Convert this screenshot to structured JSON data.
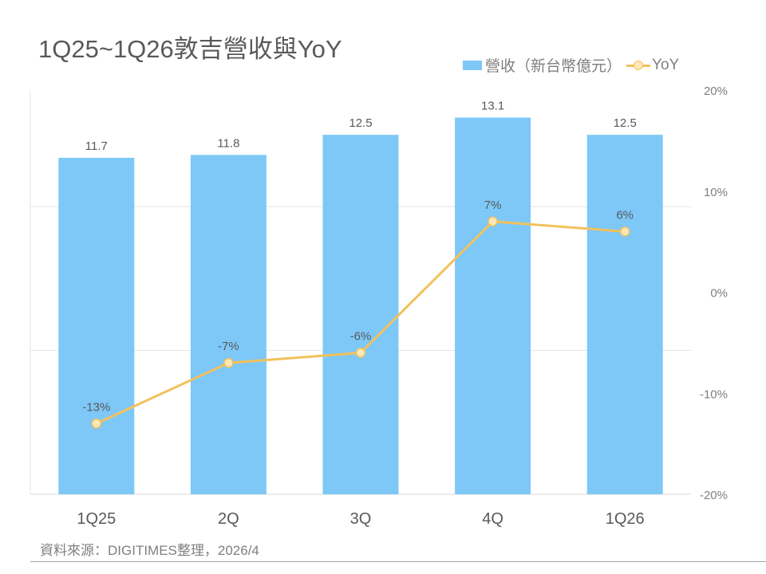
{
  "chart_data": {
    "type": "bar",
    "title": "1Q25~1Q26敦吉營收與YoY",
    "categories": [
      "1Q25",
      "2Q",
      "3Q",
      "4Q",
      "1Q26"
    ],
    "series": [
      {
        "name": "營收（新台幣億元）",
        "type": "bar",
        "axis": "left",
        "values": [
          11.7,
          11.8,
          12.5,
          13.1,
          12.5
        ],
        "labels": [
          "11.7",
          "11.8",
          "12.5",
          "13.1",
          "12.5"
        ],
        "color": "#7ec8f8"
      },
      {
        "name": "YoY",
        "type": "line",
        "axis": "right",
        "values": [
          -13,
          -7,
          -6,
          7,
          6
        ],
        "labels": [
          "-13%",
          "-7%",
          "-6%",
          "7%",
          "6%"
        ],
        "color": "#f2c15c"
      }
    ],
    "left_axis": {
      "ylim": [
        0,
        14
      ],
      "gridlines": [
        5,
        10
      ],
      "tick_labels_visible": false
    },
    "right_axis": {
      "ylim": [
        -20,
        20
      ],
      "ticks": [
        20,
        10,
        0,
        -10,
        -20
      ],
      "tick_labels": [
        "20%",
        "10%",
        "0%",
        "-10%",
        "-20%"
      ]
    },
    "legend": {
      "placement": "top-right",
      "entries": [
        "營收（新台幣億元）",
        "YoY"
      ]
    },
    "grid": true
  },
  "source": "資料來源：DIGITIMES整理，2026/4"
}
